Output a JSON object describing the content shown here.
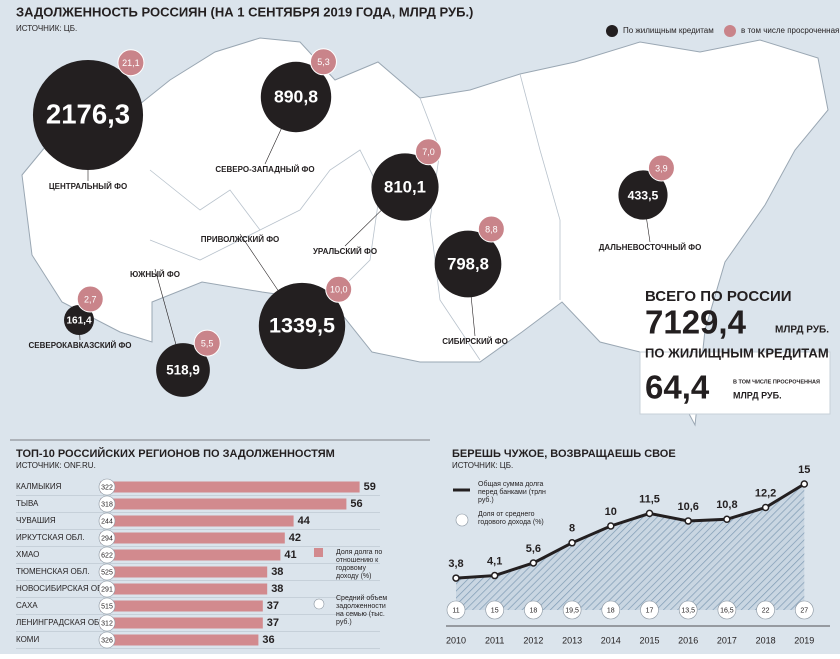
{
  "chart_data": [
    {
      "type": "bubble",
      "title": "ЗАДОЛЖЕННОСТЬ РОССИЯН (НА 1 СЕНТЯБРЯ 2019 ГОДА, МЛРД РУБ.)",
      "source": "ИСТОЧНИК: ЦБ.",
      "categories": [
        "ЦЕНТРАЛЬНЫЙ ФО",
        "СЕВЕРО-ЗАПАДНЫЙ ФО",
        "УРАЛЬСКИЙ ФО",
        "СИБИРСКИЙ ФО",
        "ДАЛЬНЕВОСТОЧНЫЙ ФО",
        "ПРИВОЛЖСКИЙ ФО",
        "ЮЖНЫЙ ФО",
        "СЕВЕРОКАВКАЗСКИЙ ФО"
      ],
      "series": [
        {
          "name": "По жилищным кредитам",
          "color": "#231f20",
          "values": [
            2176.3,
            890.8,
            810.1,
            798.8,
            433.5,
            1339.5,
            518.9,
            161.4
          ],
          "value_labels": [
            "2176,3",
            "890,8",
            "810,1",
            "798,8",
            "433,5",
            "1339,5",
            "518,9",
            "161,4"
          ]
        },
        {
          "name": "в том числе просроченная",
          "color": "#c9848a",
          "values": [
            21.1,
            5.3,
            7.0,
            8.8,
            3.9,
            10.0,
            5.5,
            2.7
          ],
          "value_labels": [
            "21,1",
            "5,3",
            "7,0",
            "8,8",
            "3,9",
            "10,0",
            "5,5",
            "2,7"
          ]
        }
      ],
      "total": {
        "title": "ВСЕГО ПО РОССИИ",
        "value": {
          "value": 7129.4,
          "label": "7129,4"
        },
        "unit": "МЛРД РУБ.",
        "subtitle": "ПО ЖИЛИЩНЫМ КРЕДИТАМ"
      },
      "overdue_total": {
        "value": {
          "value": 64.4,
          "label": "64,4"
        },
        "note": "В ТОМ ЧИСЛЕ ПРОСРОЧЕННАЯ",
        "unit": "МЛРД РУБ."
      }
    },
    {
      "type": "bar",
      "title": "ТОП-10 РОССИЙСКИХ РЕГИОНОВ ПО ЗАДОЛЖЕННОСТЯМ",
      "source": "ИСТОЧНИК: ONF.RU.",
      "categories": [
        "КАЛМЫКИЯ",
        "ТЫВА",
        "ЧУВАШИЯ",
        "ИРКУТСКАЯ ОБЛ.",
        "ХМАО",
        "ТЮМЕНСКАЯ ОБЛ.",
        "НОВОСИБИРСКАЯ ОБЛ.",
        "САХА",
        "ЛЕНИНГРАДСКАЯ ОБЛ.",
        "КОМИ"
      ],
      "series": [
        {
          "name": "Доля долга по отношению к годовому доходу (%)",
          "color": "#d28a8e",
          "values": [
            59,
            56,
            44,
            42,
            41,
            38,
            38,
            37,
            37,
            36
          ]
        },
        {
          "name": "Средний объем задолженности на семью (тыс. руб.)",
          "color": "#ffffff",
          "values": [
            322,
            318,
            244,
            294,
            622,
            525,
            291,
            515,
            312,
            326
          ]
        }
      ]
    },
    {
      "type": "line",
      "title": "БЕРЕШЬ ЧУЖОЕ, ВОЗВРАЩАЕШЬ СВОЕ",
      "source": "ИСТОЧНИК: ЦБ.",
      "x": [
        "2010",
        "2011",
        "2012",
        "2013",
        "2014",
        "2015",
        "2016",
        "2017",
        "2018",
        "2019"
      ],
      "series": [
        {
          "name": "Общая сумма долга перед банками (трлн руб.)",
          "color": "#231f20",
          "values": [
            3.8,
            4.1,
            5.6,
            8,
            10,
            11.5,
            10.6,
            10.8,
            12.2,
            15
          ],
          "value_labels": [
            "3,8",
            "4,1",
            "5,6",
            "8",
            "10",
            "11,5",
            "10,6",
            "10,8",
            "12,2",
            "15"
          ]
        },
        {
          "name": "Доля от среднего годового дохода (%)",
          "color": "#ffffff",
          "values": [
            11,
            15,
            18,
            19.5,
            18,
            17,
            13.5,
            16.5,
            22,
            27
          ],
          "value_labels": [
            "11",
            "15",
            "18",
            "19,5",
            "18",
            "17",
            "13,5",
            "16,5",
            "22",
            "27"
          ]
        }
      ]
    }
  ]
}
